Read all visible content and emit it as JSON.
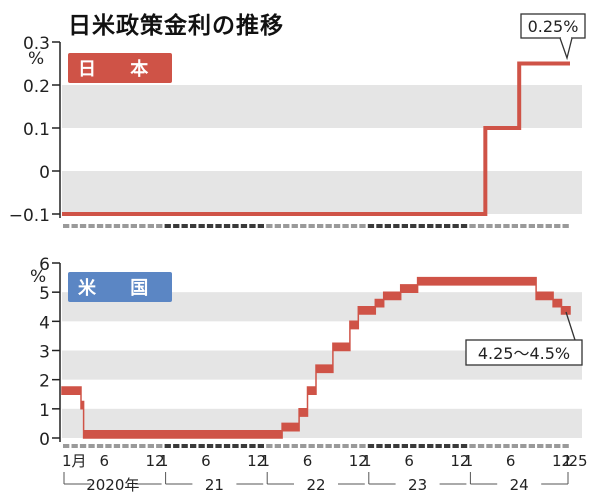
{
  "title": "日米政策金利の推移",
  "colors": {
    "line": "#cf5347",
    "band": "#e5e5e5",
    "jp_badge": "#cf5347",
    "us_badge": "#5b86c4",
    "axis_strip_dark": "#3a3a3a",
    "axis_strip_light": "#9a9a9a"
  },
  "x_axis": {
    "tick_labels": [
      "1月",
      "6",
      "12",
      "1",
      "6",
      "12",
      "1",
      "6",
      "12",
      "1",
      "6",
      "12",
      "1",
      "6",
      "12",
      "1",
      "25"
    ],
    "year_labels": [
      "2020年",
      "21",
      "22",
      "23",
      "24"
    ]
  },
  "chart_data": [
    {
      "type": "line",
      "panel_label": "日 本",
      "yunit": "%",
      "ylim": [
        -0.1,
        0.3
      ],
      "yticks": [
        -0.1,
        0,
        0.1,
        0.2,
        0.3
      ],
      "ytick_labels": [
        "−0.1",
        "0",
        "0.1",
        "0.2",
        "0.3"
      ],
      "step": true,
      "series": [
        {
          "points": [
            {
              "x": "2020-01",
              "y": -0.1
            },
            {
              "x": "2024-03",
              "y": 0.1
            },
            {
              "x": "2024-07",
              "y": 0.25
            },
            {
              "x": "2025-01",
              "y": 0.25
            }
          ]
        }
      ],
      "annotation": "0.25%"
    },
    {
      "type": "line",
      "panel_label": "米 国",
      "yunit": "%",
      "ylim": [
        0,
        6
      ],
      "yticks": [
        0,
        1,
        2,
        3,
        4,
        5,
        6
      ],
      "ytick_labels": [
        "0",
        "1",
        "2",
        "3",
        "4",
        "5",
        "6"
      ],
      "step": true,
      "series": [
        {
          "band": true,
          "points": [
            {
              "x": "2020-01",
              "low": 1.5,
              "high": 1.75
            },
            {
              "x": "2020-03a",
              "low": 1.0,
              "high": 1.25
            },
            {
              "x": "2020-03b",
              "low": 0,
              "high": 0.25
            },
            {
              "x": "2022-03",
              "low": 0.25,
              "high": 0.5
            },
            {
              "x": "2022-05",
              "low": 0.75,
              "high": 1.0
            },
            {
              "x": "2022-06",
              "low": 1.5,
              "high": 1.75
            },
            {
              "x": "2022-07",
              "low": 2.25,
              "high": 2.5
            },
            {
              "x": "2022-09",
              "low": 3.0,
              "high": 3.25
            },
            {
              "x": "2022-11",
              "low": 3.75,
              "high": 4.0
            },
            {
              "x": "2022-12",
              "low": 4.25,
              "high": 4.5
            },
            {
              "x": "2023-02",
              "low": 4.5,
              "high": 4.75
            },
            {
              "x": "2023-03",
              "low": 4.75,
              "high": 5.0
            },
            {
              "x": "2023-05",
              "low": 5.0,
              "high": 5.25
            },
            {
              "x": "2023-07",
              "low": 5.25,
              "high": 5.5
            },
            {
              "x": "2024-09",
              "low": 4.75,
              "high": 5.0
            },
            {
              "x": "2024-11",
              "low": 4.5,
              "high": 4.75
            },
            {
              "x": "2024-12",
              "low": 4.25,
              "high": 4.5
            },
            {
              "x": "2025-01",
              "low": 4.25,
              "high": 4.5
            }
          ]
        }
      ],
      "annotation": "4.25〜4.5%"
    }
  ]
}
